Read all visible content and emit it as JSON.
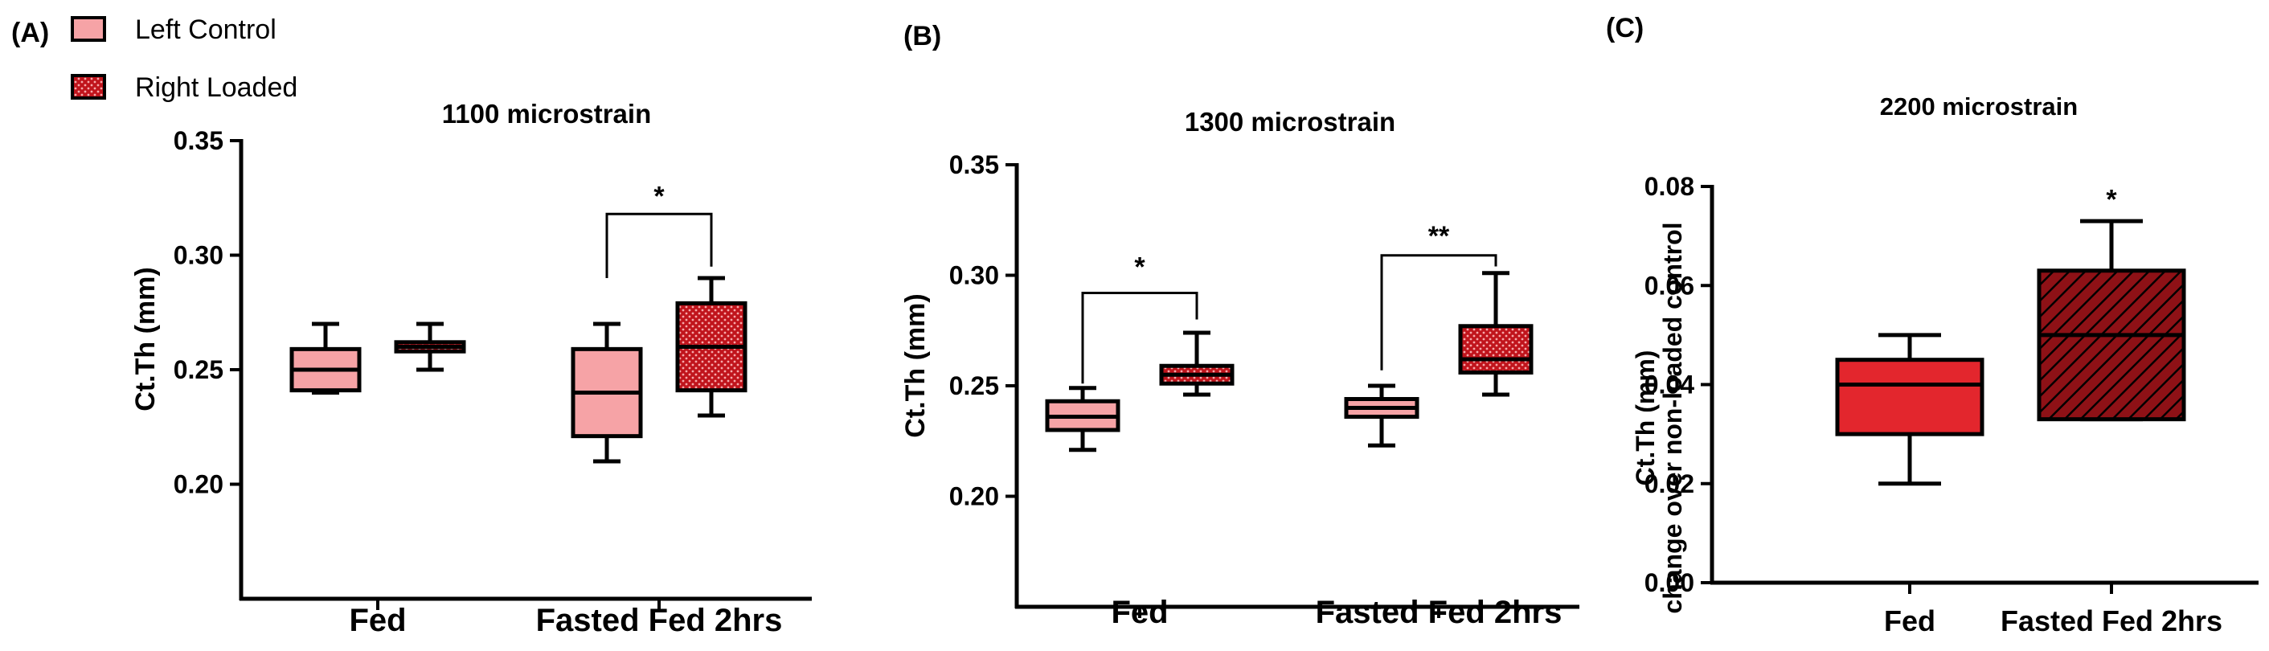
{
  "colors": {
    "control_fill": "#f6a3a6",
    "loaded_fill": "#c0141c",
    "loaded_dots": "#f7a8aa",
    "fed_c_fill": "#e3262d",
    "fasted_c_fill": "#8e1116",
    "stroke": "#000000"
  },
  "legend": {
    "control_label": "Left Control",
    "loaded_label": "Right Loaded"
  },
  "panels": [
    {
      "letter": "(A)",
      "title": "1100 microstrain",
      "ylabel": "Ct.Th (mm)"
    },
    {
      "letter": "(B)",
      "title": "1300 microstrain",
      "ylabel": "Ct.Th (mm)"
    },
    {
      "letter": "(C)",
      "title": "2200 microstrain",
      "ylabel": "Ct.Th (mm)",
      "ylabel2": "change over non-loaded control"
    }
  ],
  "chart_data": [
    {
      "type": "box",
      "title": "1100 microstrain",
      "ylabel": "Ct.Th (mm)",
      "ylim": [
        0.15,
        0.35
      ],
      "yticks": [
        0.2,
        0.25,
        0.3,
        0.35
      ],
      "ytick_labels": [
        "0.20",
        "0.25",
        "0.30",
        "0.35"
      ],
      "categories": [
        "Fed",
        "Fasted Fed 2hrs"
      ],
      "series": [
        {
          "name": "Left Control",
          "boxes": [
            {
              "min": 0.24,
              "q1": 0.241,
              "median": 0.25,
              "q3": 0.259,
              "max": 0.27
            },
            {
              "min": 0.21,
              "q1": 0.221,
              "median": 0.24,
              "q3": 0.259,
              "max": 0.27
            }
          ]
        },
        {
          "name": "Right Loaded",
          "boxes": [
            {
              "min": 0.25,
              "q1": 0.258,
              "median": 0.26,
              "q3": 0.262,
              "max": 0.27
            },
            {
              "min": 0.23,
              "q1": 0.241,
              "median": 0.26,
              "q3": 0.279,
              "max": 0.29
            }
          ]
        }
      ],
      "significance": [
        {
          "category": "Fasted Fed 2hrs",
          "label": "*"
        }
      ]
    },
    {
      "type": "box",
      "title": "1300 microstrain",
      "ylabel": "Ct.Th (mm)",
      "ylim": [
        0.15,
        0.35
      ],
      "yticks": [
        0.2,
        0.25,
        0.3,
        0.35
      ],
      "ytick_labels": [
        "0.20",
        "0.25",
        "0.30",
        "0.35"
      ],
      "categories": [
        "Fed",
        "Fasted Fed 2hrs"
      ],
      "series": [
        {
          "name": "Left Control",
          "boxes": [
            {
              "min": 0.221,
              "q1": 0.23,
              "median": 0.236,
              "q3": 0.243,
              "max": 0.249
            },
            {
              "min": 0.223,
              "q1": 0.236,
              "median": 0.24,
              "q3": 0.244,
              "max": 0.25
            }
          ]
        },
        {
          "name": "Right Loaded",
          "boxes": [
            {
              "min": 0.246,
              "q1": 0.251,
              "median": 0.255,
              "q3": 0.259,
              "max": 0.274
            },
            {
              "min": 0.246,
              "q1": 0.256,
              "median": 0.262,
              "q3": 0.277,
              "max": 0.301
            }
          ]
        }
      ],
      "significance": [
        {
          "category": "Fed",
          "label": "*"
        },
        {
          "category": "Fasted Fed 2hrs",
          "label": "**"
        }
      ]
    },
    {
      "type": "box",
      "title": "2200 microstrain",
      "ylabel": "Ct.Th (mm) change over non-loaded control",
      "ylim": [
        0.0,
        0.08
      ],
      "yticks": [
        0.0,
        0.02,
        0.04,
        0.06,
        0.08
      ],
      "ytick_labels": [
        "0.00",
        "0.02",
        "0.04",
        "0.06",
        "0.08"
      ],
      "categories": [
        "Fed",
        "Fasted Fed 2hrs"
      ],
      "boxes": [
        {
          "min": 0.02,
          "q1": 0.03,
          "median": 0.04,
          "q3": 0.045,
          "max": 0.05
        },
        {
          "min": 0.033,
          "q1": 0.033,
          "median": 0.05,
          "q3": 0.063,
          "max": 0.073
        }
      ],
      "significance": [
        {
          "category": "Fasted Fed 2hrs",
          "label": "*"
        }
      ]
    }
  ]
}
